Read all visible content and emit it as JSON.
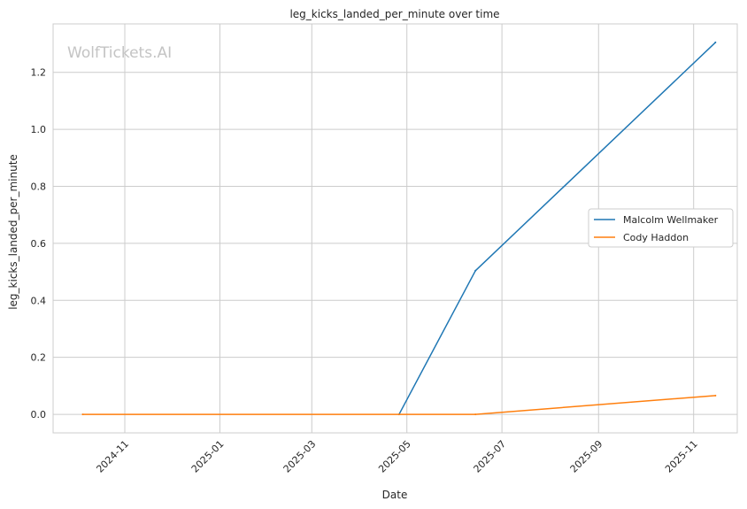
{
  "watermark": "WolfTickets.AI",
  "chart_data": {
    "type": "line",
    "title": "leg_kicks_landed_per_minute over time",
    "xlabel": "Date",
    "ylabel": "leg_kicks_landed_per_minute",
    "x_axis_type": "date",
    "xlim": [
      "2024-09-16",
      "2025-11-29"
    ],
    "ylim": [
      -0.065,
      1.37
    ],
    "x_ticks": [
      {
        "date": "2024-11-01",
        "label": "2024-11"
      },
      {
        "date": "2025-01-01",
        "label": "2025-01"
      },
      {
        "date": "2025-03-01",
        "label": "2025-03"
      },
      {
        "date": "2025-05-01",
        "label": "2025-05"
      },
      {
        "date": "2025-07-01",
        "label": "2025-07"
      },
      {
        "date": "2025-09-01",
        "label": "2025-09"
      },
      {
        "date": "2025-11-01",
        "label": "2025-11"
      }
    ],
    "y_ticks": [
      0.0,
      0.2,
      0.4,
      0.6,
      0.8,
      1.0,
      1.2
    ],
    "y_tick_labels": [
      "0.0",
      "0.2",
      "0.4",
      "0.6",
      "0.8",
      "1.0",
      "1.2"
    ],
    "grid": true,
    "legend_position": "center-right",
    "series": [
      {
        "name": "Malcolm Wellmaker",
        "color": "#1f77b4",
        "x": [
          "2025-04-26",
          "2025-06-14",
          "2025-11-15"
        ],
        "y": [
          0.0,
          0.504,
          1.305
        ]
      },
      {
        "name": "Cody Haddon",
        "color": "#ff7f0e",
        "x": [
          "2024-10-05",
          "2025-04-26",
          "2025-06-14",
          "2025-11-15"
        ],
        "y": [
          0.0,
          0.0,
          0.0,
          0.066
        ]
      }
    ]
  }
}
